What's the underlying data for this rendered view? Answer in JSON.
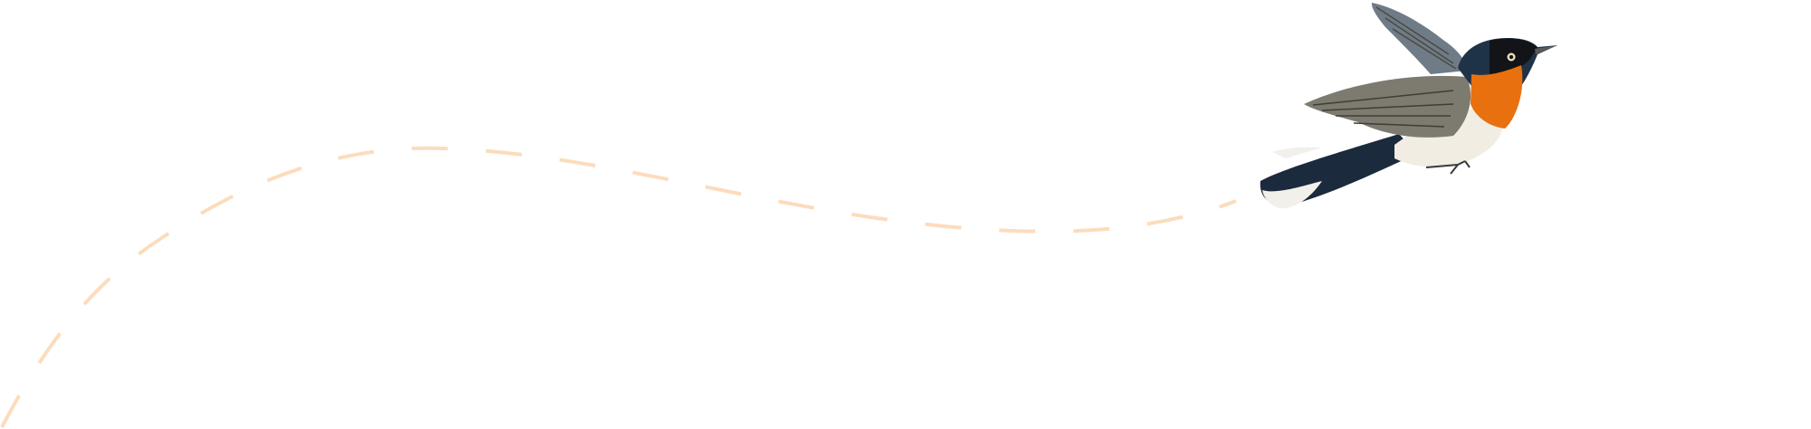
{
  "colors": {
    "background": "#ffffff",
    "flight_path": "#fcdcbd",
    "bird_throat": "#e8700f",
    "bird_head": "#1f3348",
    "bird_wing": "#7d7a70",
    "bird_belly": "#f1ede3"
  },
  "illustration": {
    "subject": "bird-icon",
    "path_style": "dashed"
  }
}
